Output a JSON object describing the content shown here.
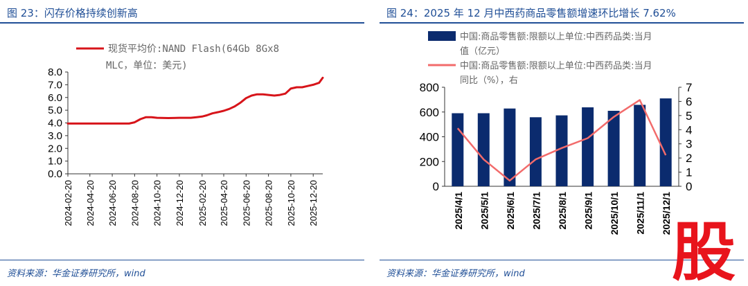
{
  "left": {
    "title": "图 23：闪存价格持续创新高",
    "source": "资料来源：华金证券研究所，wind",
    "legend_line1": "现货平均价:NAND Flash(64Gb 8Gx8",
    "legend_line2": "MLC，单位：美元)"
  },
  "right": {
    "title": "图 24：2025 年 12 月中西药商品零售额增速环比增长 7.62%",
    "source": "资料来源：华金证券研究所，wind",
    "legend_bar_line1": "中国:商品零售额:限额以上单位:中西药品类:当月",
    "legend_bar_line2": "值（亿元）",
    "legend_line_line1": "中国:商品零售额:限额以上单位:中西药品类:当月",
    "legend_line_line2": "同比（%），右"
  },
  "watermark": {
    "glyph": "股",
    "color": "#e8141c"
  },
  "colors": {
    "title_blue": "#1f4e96",
    "line_red": "#d7141a",
    "bar_navy": "#0b2b6e",
    "line_pink": "#f26b6b"
  },
  "chart_data": [
    {
      "type": "line",
      "title": "",
      "series": [
        {
          "name": "现货平均价:NAND Flash(64Gb 8Gx8 MLC，单位：美元)",
          "x": [
            "2024-02-20",
            "2024-03-20",
            "2024-04-20",
            "2024-05-20",
            "2024-06-20",
            "2024-07-20",
            "2024-08-05",
            "2024-08-20",
            "2024-09-05",
            "2024-09-20",
            "2024-10-05",
            "2024-10-20",
            "2024-11-20",
            "2024-12-20",
            "2025-01-20",
            "2025-02-05",
            "2025-02-20",
            "2025-03-05",
            "2025-03-20",
            "2025-04-05",
            "2025-04-20",
            "2025-05-05",
            "2025-05-20",
            "2025-06-05",
            "2025-06-20",
            "2025-07-05",
            "2025-07-20",
            "2025-08-05",
            "2025-08-20",
            "2025-09-05",
            "2025-09-20",
            "2025-10-05",
            "2025-10-20",
            "2025-11-05",
            "2025-11-20",
            "2025-12-05",
            "2025-12-20",
            "2026-01-05",
            "2026-01-15"
          ],
          "values": [
            3.95,
            3.95,
            3.95,
            3.95,
            3.95,
            3.95,
            3.95,
            4.05,
            4.3,
            4.45,
            4.45,
            4.4,
            4.38,
            4.4,
            4.4,
            4.45,
            4.5,
            4.6,
            4.75,
            4.85,
            4.95,
            5.1,
            5.3,
            5.6,
            5.95,
            6.15,
            6.25,
            6.25,
            6.2,
            6.15,
            6.2,
            6.3,
            6.7,
            6.8,
            6.8,
            6.9,
            7.0,
            7.15,
            7.55
          ]
        }
      ],
      "x_ticks": [
        "2024-02-20",
        "2024-04-20",
        "2024-06-20",
        "2024-08-20",
        "2024-10-20",
        "2024-12-20",
        "2025-02-20",
        "2025-04-20",
        "2025-06-20",
        "2025-08-20",
        "2025-10-20",
        "2025-12-20"
      ],
      "y_ticks": [
        "0.0",
        "1.0",
        "2.0",
        "3.0",
        "4.0",
        "5.0",
        "6.0",
        "7.0",
        "8.0"
      ],
      "ylim": [
        0,
        8
      ],
      "grid": false,
      "legend": "top"
    },
    {
      "type": "bar",
      "categories": [
        "2025/4/1",
        "2025/5/1",
        "2025/6/1",
        "2025/7/1",
        "2025/8/1",
        "2025/9/1",
        "2025/10/1",
        "2025/11/1",
        "2025/12/1"
      ],
      "series": [
        {
          "name": "中国:商品零售额:限额以上单位:中西药品类:当月值（亿元）",
          "type": "bar",
          "axis": "left",
          "values": [
            590,
            590,
            628,
            558,
            573,
            638,
            610,
            658,
            710
          ]
        },
        {
          "name": "中国:商品零售额:限额以上单位:中西药品类:当月同比（%），右",
          "type": "line",
          "axis": "right",
          "values": [
            4.1,
            1.9,
            0.4,
            1.9,
            2.7,
            3.4,
            4.9,
            6.1,
            2.2
          ]
        }
      ],
      "y_ticks_left": [
        "0",
        "200",
        "400",
        "600",
        "800"
      ],
      "y_ticks_right": [
        "0",
        "1",
        "2",
        "3",
        "4",
        "5",
        "6",
        "7"
      ],
      "ylim_left": [
        0,
        800
      ],
      "ylim_right": [
        0,
        7
      ],
      "grid": false,
      "legend": "top"
    }
  ]
}
